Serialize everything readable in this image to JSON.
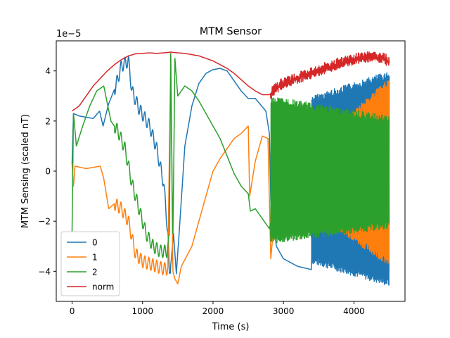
{
  "chart_data": {
    "type": "line",
    "title": "MTM Sensor",
    "xlabel": "Time (s)",
    "ylabel": "MTM Sensing (scaled nT)",
    "y_offset_text": "1e−5",
    "xlim": [
      -225,
      4725
    ],
    "ylim": [
      -5.2,
      5.2
    ],
    "xticks": [
      0,
      1000,
      2000,
      3000,
      4000
    ],
    "yticks": [
      -4,
      -2,
      0,
      2,
      4
    ],
    "xtick_labels": [
      "0",
      "1000",
      "2000",
      "3000",
      "4000"
    ],
    "ytick_labels": [
      "−4",
      "−2",
      "0",
      "2",
      "4"
    ],
    "grid": false,
    "legend_position": "lower-left",
    "series": [
      {
        "name": "0",
        "color": "#1f77b4",
        "points": [
          [
            0,
            0.3
          ],
          [
            20,
            2.3
          ],
          [
            100,
            2.2
          ],
          [
            300,
            2.1
          ],
          [
            390,
            2.4
          ],
          [
            440,
            1.8
          ],
          [
            520,
            2.7
          ],
          [
            620,
            3.4
          ],
          [
            700,
            4.2
          ],
          [
            800,
            4.4
          ],
          [
            850,
            3.2
          ],
          [
            950,
            2.5
          ],
          [
            1100,
            1.8
          ],
          [
            1200,
            0.9
          ],
          [
            1300,
            -0.5
          ],
          [
            1360,
            -2.5
          ],
          [
            1380,
            -4.2
          ],
          [
            1410,
            -3.5
          ],
          [
            1440,
            -2.5
          ],
          [
            1480,
            -4.1
          ],
          [
            1530,
            -2.0
          ],
          [
            1600,
            1.0
          ],
          [
            1700,
            2.6
          ],
          [
            1800,
            3.5
          ],
          [
            1900,
            3.9
          ],
          [
            2000,
            4.05
          ],
          [
            2100,
            4.1
          ],
          [
            2200,
            4.0
          ],
          [
            2300,
            3.6
          ],
          [
            2400,
            3.2
          ],
          [
            2500,
            2.9
          ],
          [
            2600,
            2.9
          ],
          [
            2750,
            2.4
          ],
          [
            2800,
            1.5
          ],
          [
            2820,
            -1.2
          ],
          [
            2900,
            -3.0
          ],
          [
            3000,
            -3.5
          ],
          [
            3200,
            -3.8
          ],
          [
            3500,
            -4.0
          ],
          [
            3800,
            -4.3
          ],
          [
            4000,
            -4.4
          ],
          [
            4200,
            -4.5
          ],
          [
            4500,
            -4.5
          ]
        ],
        "envelope": {
          "x_from": 3400,
          "x_to": 4500,
          "lower_from": -3.7,
          "lower_to": -4.6,
          "upper_from": 3.0,
          "upper_to": 4.0
        }
      },
      {
        "name": "1",
        "color": "#ff7f0e",
        "points": [
          [
            0,
            0.3
          ],
          [
            20,
            -0.6
          ],
          [
            40,
            0.2
          ],
          [
            200,
            0.1
          ],
          [
            400,
            0.2
          ],
          [
            450,
            -0.3
          ],
          [
            520,
            -1.5
          ],
          [
            600,
            -1.3
          ],
          [
            700,
            -1.5
          ],
          [
            800,
            -2.0
          ],
          [
            900,
            -3.3
          ],
          [
            1000,
            -3.6
          ],
          [
            1100,
            -3.7
          ],
          [
            1200,
            -3.8
          ],
          [
            1300,
            -3.9
          ],
          [
            1360,
            -3.9
          ],
          [
            1400,
            4.6
          ],
          [
            1430,
            -4.0
          ],
          [
            1460,
            -4.3
          ],
          [
            1500,
            -4.5
          ],
          [
            1550,
            -3.8
          ],
          [
            1700,
            -3.0
          ],
          [
            1800,
            -2.0
          ],
          [
            1900,
            -1.0
          ],
          [
            2000,
            0.0
          ],
          [
            2100,
            0.5
          ],
          [
            2200,
            0.9
          ],
          [
            2300,
            1.3
          ],
          [
            2400,
            1.5
          ],
          [
            2500,
            1.8
          ],
          [
            2520,
            -1.0
          ],
          [
            2600,
            0.4
          ],
          [
            2700,
            1.4
          ],
          [
            2780,
            1.3
          ],
          [
            2820,
            -3.5
          ],
          [
            2900,
            -1.0
          ],
          [
            3000,
            -1.2
          ],
          [
            3200,
            -1.0
          ],
          [
            3500,
            -1.2
          ],
          [
            3800,
            -1.0
          ],
          [
            4200,
            -1.2
          ],
          [
            4500,
            -1.0
          ]
        ],
        "envelope": {
          "x_from": 3600,
          "x_to": 4500,
          "lower_from": -2.0,
          "lower_to": -3.8,
          "upper_from": 1.5,
          "upper_to": 3.7
        }
      },
      {
        "name": "2",
        "color": "#2ca02c",
        "points": [
          [
            0,
            -2.4
          ],
          [
            20,
            2.3
          ],
          [
            60,
            1.0
          ],
          [
            150,
            1.8
          ],
          [
            250,
            2.6
          ],
          [
            350,
            3.2
          ],
          [
            450,
            3.4
          ],
          [
            550,
            2.0
          ],
          [
            650,
            1.6
          ],
          [
            750,
            0.9
          ],
          [
            850,
            -0.5
          ],
          [
            950,
            -1.5
          ],
          [
            1050,
            -2.5
          ],
          [
            1150,
            -3.0
          ],
          [
            1250,
            -3.2
          ],
          [
            1350,
            -3.2
          ],
          [
            1380,
            -2.7
          ],
          [
            1400,
            4.7
          ],
          [
            1430,
            -3.0
          ],
          [
            1460,
            4.5
          ],
          [
            1500,
            3.0
          ],
          [
            1600,
            3.4
          ],
          [
            1700,
            3.2
          ],
          [
            1800,
            2.8
          ],
          [
            1900,
            2.3
          ],
          [
            2000,
            1.8
          ],
          [
            2100,
            1.3
          ],
          [
            2200,
            0.6
          ],
          [
            2300,
            -0.1
          ],
          [
            2400,
            -0.6
          ],
          [
            2500,
            -0.9
          ],
          [
            2530,
            -1.6
          ],
          [
            2600,
            -1.5
          ],
          [
            2700,
            -1.9
          ],
          [
            2800,
            -2.3
          ],
          [
            2900,
            -1.0
          ],
          [
            3000,
            0.0
          ],
          [
            3200,
            0.3
          ],
          [
            3500,
            0.0
          ],
          [
            3800,
            -0.2
          ],
          [
            4200,
            0.0
          ],
          [
            4500,
            -0.2
          ]
        ],
        "envelope": {
          "x_from": 2820,
          "x_to": 4500,
          "lower_from": -2.9,
          "lower_to": -2.3,
          "upper_from": 3.0,
          "upper_to": 2.2
        }
      },
      {
        "name": "norm",
        "color": "#d62728",
        "points": [
          [
            0,
            2.4
          ],
          [
            100,
            2.6
          ],
          [
            200,
            3.0
          ],
          [
            300,
            3.4
          ],
          [
            400,
            3.7
          ],
          [
            500,
            4.0
          ],
          [
            600,
            4.25
          ],
          [
            700,
            4.45
          ],
          [
            800,
            4.6
          ],
          [
            900,
            4.68
          ],
          [
            1000,
            4.7
          ],
          [
            1100,
            4.72
          ],
          [
            1200,
            4.7
          ],
          [
            1300,
            4.72
          ],
          [
            1400,
            4.75
          ],
          [
            1500,
            4.72
          ],
          [
            1600,
            4.7
          ],
          [
            1700,
            4.65
          ],
          [
            1800,
            4.6
          ],
          [
            1900,
            4.5
          ],
          [
            2000,
            4.4
          ],
          [
            2100,
            4.25
          ],
          [
            2200,
            4.1
          ],
          [
            2300,
            3.9
          ],
          [
            2400,
            3.65
          ],
          [
            2500,
            3.4
          ],
          [
            2600,
            3.2
          ],
          [
            2700,
            3.05
          ],
          [
            2800,
            3.05
          ],
          [
            2900,
            3.3
          ],
          [
            3000,
            3.5
          ],
          [
            3200,
            3.7
          ],
          [
            3400,
            3.9
          ],
          [
            3600,
            4.1
          ],
          [
            3800,
            4.3
          ],
          [
            4000,
            4.45
          ],
          [
            4200,
            4.55
          ],
          [
            4400,
            4.5
          ],
          [
            4500,
            4.35
          ]
        ],
        "envelope": {
          "x_from": 2820,
          "x_to": 4500,
          "lower_from": -0.2,
          "lower_to": -0.2,
          "upper_from": 0.25,
          "upper_to": 0.25
        }
      }
    ]
  }
}
